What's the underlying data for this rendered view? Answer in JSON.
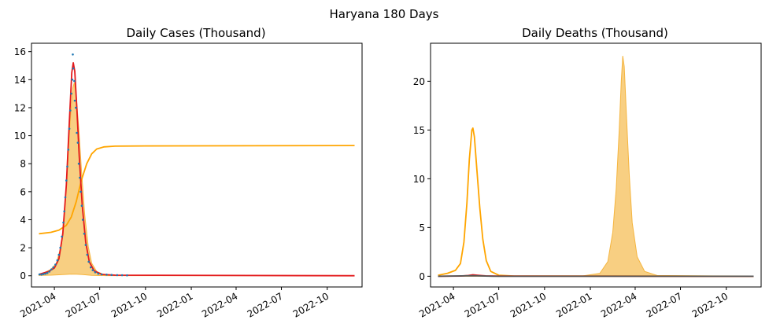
{
  "figure_title": "Haryana 180 Days",
  "chart_data": [
    {
      "type": "line",
      "title": "Daily Cases (Thousand)",
      "xlabel": "",
      "ylabel": "",
      "x_ticks": [
        "2021-04",
        "2021-07",
        "2021-10",
        "2022-01",
        "2022-04",
        "2022-07",
        "2022-10"
      ],
      "xlim": [
        "2021-02-14",
        "2022-12-10"
      ],
      "ylim": [
        -0.8,
        16.6
      ],
      "y_ticks": [
        0,
        2,
        4,
        6,
        8,
        10,
        12,
        14,
        16
      ],
      "grid": false,
      "series": [
        {
          "kind": "area",
          "color": "#f5b53f",
          "points": [
            [
              "2021-03-01",
              0.02
            ],
            [
              "2021-03-25",
              0.04
            ],
            [
              "2021-04-10",
              0.07
            ],
            [
              "2021-04-25",
              0.1
            ],
            [
              "2021-05-05",
              0.12
            ],
            [
              "2021-05-15",
              0.11
            ],
            [
              "2021-05-28",
              0.08
            ],
            [
              "2021-06-15",
              0.03
            ],
            [
              "2021-07-15",
              0.01
            ],
            [
              "2022-11-25",
              0.0
            ]
          ],
          "upper": [
            [
              "2021-03-01",
              0.05
            ],
            [
              "2021-03-25",
              0.45
            ],
            [
              "2021-04-05",
              0.9
            ],
            [
              "2021-04-15",
              2.2
            ],
            [
              "2021-04-22",
              4.8
            ],
            [
              "2021-04-28",
              8.2
            ],
            [
              "2021-05-03",
              11.2
            ],
            [
              "2021-05-08",
              13.4
            ],
            [
              "2021-05-11",
              13.8
            ],
            [
              "2021-05-15",
              12.8
            ],
            [
              "2021-05-20",
              10.5
            ],
            [
              "2021-05-26",
              7.2
            ],
            [
              "2021-06-01",
              4.3
            ],
            [
              "2021-06-08",
              2.1
            ],
            [
              "2021-06-15",
              0.9
            ],
            [
              "2021-06-25",
              0.3
            ],
            [
              "2021-07-10",
              0.08
            ],
            [
              "2021-08-15",
              0.02
            ],
            [
              "2022-11-25",
              0.0
            ]
          ]
        },
        {
          "kind": "line",
          "color": "#ffa500",
          "points": [
            [
              "2021-03-01",
              3.0
            ],
            [
              "2021-03-25",
              3.1
            ],
            [
              "2021-04-10",
              3.25
            ],
            [
              "2021-04-25",
              3.6
            ],
            [
              "2021-05-05",
              4.2
            ],
            [
              "2021-05-15",
              5.3
            ],
            [
              "2021-05-25",
              6.8
            ],
            [
              "2021-06-05",
              8.0
            ],
            [
              "2021-06-15",
              8.7
            ],
            [
              "2021-06-25",
              9.05
            ],
            [
              "2021-07-10",
              9.2
            ],
            [
              "2021-08-01",
              9.25
            ],
            [
              "2021-10-01",
              9.27
            ],
            [
              "2022-11-25",
              9.3
            ]
          ]
        },
        {
          "kind": "line",
          "color": "#e31a1c",
          "points": [
            [
              "2021-03-01",
              0.1
            ],
            [
              "2021-03-20",
              0.3
            ],
            [
              "2021-04-01",
              0.55
            ],
            [
              "2021-04-10",
              1.2
            ],
            [
              "2021-04-18",
              3.0
            ],
            [
              "2021-04-25",
              6.5
            ],
            [
              "2021-05-01",
              11.0
            ],
            [
              "2021-05-06",
              14.5
            ],
            [
              "2021-05-09",
              15.2
            ],
            [
              "2021-05-12",
              14.6
            ],
            [
              "2021-05-16",
              12.0
            ],
            [
              "2021-05-21",
              8.5
            ],
            [
              "2021-05-27",
              5.0
            ],
            [
              "2021-06-03",
              2.4
            ],
            [
              "2021-06-10",
              1.0
            ],
            [
              "2021-06-20",
              0.35
            ],
            [
              "2021-07-05",
              0.1
            ],
            [
              "2021-08-01",
              0.04
            ],
            [
              "2022-11-25",
              0.0
            ]
          ]
        },
        {
          "kind": "scatter",
          "color": "#1f77b4",
          "points": [
            [
              "2021-03-02",
              0.1
            ],
            [
              "2021-03-06",
              0.08
            ],
            [
              "2021-03-10",
              0.12
            ],
            [
              "2021-03-14",
              0.15
            ],
            [
              "2021-03-18",
              0.2
            ],
            [
              "2021-03-22",
              0.3
            ],
            [
              "2021-03-26",
              0.45
            ],
            [
              "2021-03-30",
              0.6
            ],
            [
              "2021-04-03",
              0.8
            ],
            [
              "2021-04-07",
              1.1
            ],
            [
              "2021-04-10",
              1.5
            ],
            [
              "2021-04-13",
              2.0
            ],
            [
              "2021-04-16",
              2.8
            ],
            [
              "2021-04-19",
              3.8
            ],
            [
              "2021-04-21",
              4.6
            ],
            [
              "2021-04-23",
              5.6
            ],
            [
              "2021-04-25",
              6.8
            ],
            [
              "2021-04-27",
              7.8
            ],
            [
              "2021-04-29",
              9.0
            ],
            [
              "2021-05-01",
              10.5
            ],
            [
              "2021-05-03",
              11.8
            ],
            [
              "2021-05-05",
              13.0
            ],
            [
              "2021-05-07",
              14.0
            ],
            [
              "2021-05-08",
              15.8
            ],
            [
              "2021-05-09",
              14.8
            ],
            [
              "2021-05-11",
              13.9
            ],
            [
              "2021-05-12",
              12.5
            ],
            [
              "2021-05-14",
              12.0
            ],
            [
              "2021-05-16",
              10.2
            ],
            [
              "2021-05-18",
              9.5
            ],
            [
              "2021-05-20",
              8.0
            ],
            [
              "2021-05-22",
              7.0
            ],
            [
              "2021-05-24",
              6.0
            ],
            [
              "2021-05-26",
              5.0
            ],
            [
              "2021-05-28",
              4.0
            ],
            [
              "2021-05-31",
              3.0
            ],
            [
              "2021-06-03",
              2.2
            ],
            [
              "2021-06-06",
              1.5
            ],
            [
              "2021-06-09",
              1.0
            ],
            [
              "2021-06-13",
              0.6
            ],
            [
              "2021-06-17",
              0.4
            ],
            [
              "2021-06-22",
              0.25
            ],
            [
              "2021-06-28",
              0.15
            ],
            [
              "2021-07-05",
              0.1
            ],
            [
              "2021-07-15",
              0.08
            ],
            [
              "2021-07-25",
              0.06
            ],
            [
              "2021-08-05",
              0.05
            ],
            [
              "2021-08-15",
              0.04
            ],
            [
              "2021-08-25",
              0.03
            ]
          ]
        }
      ]
    },
    {
      "type": "line",
      "title": "Daily Deaths (Thousand)",
      "xlabel": "",
      "ylabel": "",
      "x_ticks": [
        "2021-04",
        "2021-07",
        "2021-10",
        "2022-01",
        "2022-04",
        "2022-07",
        "2022-10"
      ],
      "xlim": [
        "2021-02-14",
        "2022-12-10"
      ],
      "ylim": [
        -1.1,
        23.9
      ],
      "y_ticks": [
        0,
        5,
        10,
        15,
        20
      ],
      "grid": false,
      "series": [
        {
          "kind": "area",
          "color": "#f5b53f",
          "points": [
            [
              "2021-03-01",
              0.0
            ],
            [
              "2022-11-25",
              0.0
            ]
          ],
          "upper": [
            [
              "2021-03-01",
              0.0
            ],
            [
              "2021-12-15",
              0.02
            ],
            [
              "2022-01-20",
              0.3
            ],
            [
              "2022-02-05",
              1.5
            ],
            [
              "2022-02-15",
              4.5
            ],
            [
              "2022-02-22",
              9.0
            ],
            [
              "2022-02-28",
              15.0
            ],
            [
              "2022-03-04",
              20.0
            ],
            [
              "2022-03-07",
              22.6
            ],
            [
              "2022-03-10",
              21.5
            ],
            [
              "2022-03-14",
              17.0
            ],
            [
              "2022-03-20",
              10.5
            ],
            [
              "2022-03-26",
              5.5
            ],
            [
              "2022-04-05",
              2.0
            ],
            [
              "2022-04-20",
              0.5
            ],
            [
              "2022-05-15",
              0.08
            ],
            [
              "2022-11-25",
              0.0
            ]
          ]
        },
        {
          "kind": "line",
          "color": "#ffa500",
          "points": [
            [
              "2021-03-01",
              0.1
            ],
            [
              "2021-03-20",
              0.3
            ],
            [
              "2021-04-05",
              0.6
            ],
            [
              "2021-04-15",
              1.3
            ],
            [
              "2021-04-22",
              3.5
            ],
            [
              "2021-04-28",
              7.5
            ],
            [
              "2021-05-03",
              12.0
            ],
            [
              "2021-05-08",
              15.0
            ],
            [
              "2021-05-10",
              15.2
            ],
            [
              "2021-05-13",
              14.3
            ],
            [
              "2021-05-18",
              11.0
            ],
            [
              "2021-05-24",
              7.0
            ],
            [
              "2021-05-30",
              3.8
            ],
            [
              "2021-06-06",
              1.6
            ],
            [
              "2021-06-15",
              0.5
            ],
            [
              "2021-07-01",
              0.1
            ],
            [
              "2021-08-01",
              0.02
            ],
            [
              "2022-11-25",
              0.0
            ]
          ]
        },
        {
          "kind": "line",
          "color": "#e31a1c",
          "points": [
            [
              "2021-03-01",
              0.0
            ],
            [
              "2021-04-15",
              0.02
            ],
            [
              "2021-05-01",
              0.08
            ],
            [
              "2021-05-10",
              0.15
            ],
            [
              "2021-05-20",
              0.1
            ],
            [
              "2021-06-05",
              0.04
            ],
            [
              "2021-07-01",
              0.01
            ],
            [
              "2022-11-25",
              0.0
            ]
          ]
        },
        {
          "kind": "line",
          "color": "#555555",
          "points": [
            [
              "2021-03-01",
              0.0
            ],
            [
              "2021-05-10",
              0.05
            ],
            [
              "2021-06-20",
              0.0
            ],
            [
              "2022-11-25",
              0.0
            ]
          ]
        }
      ]
    }
  ]
}
